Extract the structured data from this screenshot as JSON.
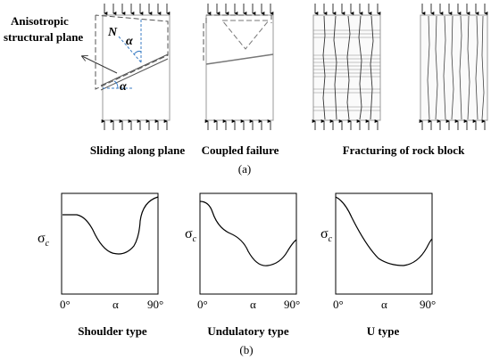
{
  "part_a": {
    "annotation": {
      "line1": "Anisotropic",
      "line2": "structural plane"
    },
    "symbols": {
      "normal": "N",
      "angle_top": "α",
      "angle_bottom": "α"
    },
    "captions": [
      "Sliding along plane",
      "Coupled failure",
      "Fracturing of rock block"
    ],
    "label": "(a)"
  },
  "part_b": {
    "plots": [
      {
        "ylabel": "σ",
        "ylabel_sub": "c",
        "tick_left": "0°",
        "tick_mid": "α",
        "tick_right": "90°",
        "caption": "Shoulder type"
      },
      {
        "ylabel": "σ",
        "ylabel_sub": "c",
        "tick_left": "0°",
        "tick_mid": "α",
        "tick_right": "90°",
        "caption": "Undulatory type"
      },
      {
        "ylabel": "σ",
        "ylabel_sub": "c",
        "tick_left": "0°",
        "tick_mid": "α",
        "tick_right": "90°",
        "caption": "U type"
      }
    ],
    "label": "(b)"
  }
}
